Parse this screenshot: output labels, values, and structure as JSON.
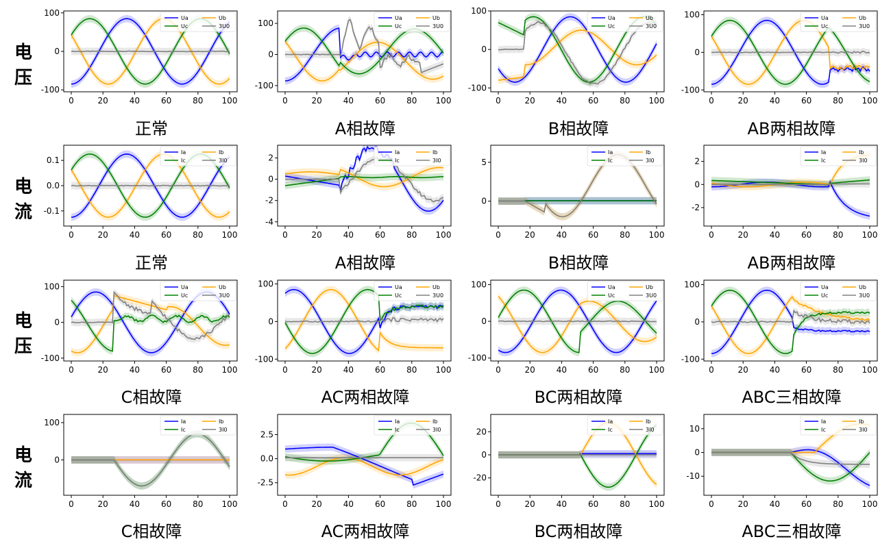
{
  "row_labels": [
    "电压",
    "电流",
    "电压",
    "电流"
  ],
  "titles": [
    [
      "正常",
      "A相故障",
      "B相故障",
      "AB两相故障"
    ],
    [
      "正常",
      "A相故障",
      "B相故障",
      "AB两相故障"
    ],
    [
      "C相故障",
      "AC两相故障",
      "BC两相故障",
      "ABC三相故障"
    ],
    [
      "C相故障",
      "AC两相故障",
      "BC两相故障",
      "ABC三相故障"
    ]
  ],
  "colors": {
    "a": "#0000ff",
    "b": "#ffa500",
    "c": "#008000",
    "zero": "#808080"
  },
  "chart_data": [
    {
      "type": "line",
      "kind": "voltage",
      "title": "正常",
      "ylim": [
        -105,
        105
      ],
      "yticks": [
        -100,
        0,
        100
      ],
      "x_range": [
        0,
        100
      ],
      "xticks": [
        0,
        20,
        40,
        60,
        80,
        100
      ],
      "legend": [
        "Ua",
        "Ub",
        "Uc",
        "3U0"
      ],
      "legend_loc": "upper right",
      "fault": "none",
      "fault_x": null,
      "series_params": {
        "amp": 85,
        "phase_a": -90,
        "phase_b": 30,
        "phase_c": 150,
        "period": 70
      }
    },
    {
      "type": "line",
      "kind": "voltage",
      "title": "A相故障",
      "ylim": [
        -120,
        140
      ],
      "yticks": [
        -100,
        0,
        100
      ],
      "x_range": [
        0,
        100
      ],
      "xticks": [
        0,
        20,
        40,
        60,
        80,
        100
      ],
      "legend": [
        "Ua",
        "Ub",
        "Uc",
        "3U0"
      ],
      "legend_loc": "upper right",
      "fault": "A",
      "fault_x": 35
    },
    {
      "type": "line",
      "kind": "voltage",
      "title": "B相故障",
      "ylim": [
        -110,
        100
      ],
      "yticks": [
        -100,
        0,
        100
      ],
      "x_range": [
        0,
        100
      ],
      "xticks": [
        0,
        20,
        40,
        60,
        80,
        100
      ],
      "legend": [
        "Ua",
        "Ub",
        "Uc",
        "3U0"
      ],
      "legend_loc": "upper right",
      "fault": "B",
      "fault_x": 17
    },
    {
      "type": "line",
      "kind": "voltage",
      "title": "AB两相故障",
      "ylim": [
        -105,
        110
      ],
      "yticks": [
        -100,
        0,
        100
      ],
      "x_range": [
        0,
        100
      ],
      "xticks": [
        0,
        20,
        40,
        60,
        80,
        100
      ],
      "legend": [
        "Ua",
        "Ub",
        "Uc",
        "3U0"
      ],
      "legend_loc": "upper right",
      "fault": "AB",
      "fault_x": 75
    },
    {
      "type": "line",
      "kind": "current",
      "title": "正常",
      "ylim": [
        -0.16,
        0.16
      ],
      "yticks": [
        -0.1,
        0.0,
        0.1
      ],
      "x_range": [
        0,
        100
      ],
      "xticks": [
        0,
        20,
        40,
        60,
        80,
        100
      ],
      "legend": [
        "Ia",
        "Ib",
        "Ic",
        "3I0"
      ],
      "legend_loc": "upper right",
      "fault": "none",
      "fault_x": null
    },
    {
      "type": "line",
      "kind": "current",
      "title": "A相故障",
      "ylim": [
        -4.4,
        3.2
      ],
      "yticks": [
        -4,
        -2,
        0,
        2
      ],
      "x_range": [
        0,
        100
      ],
      "xticks": [
        0,
        20,
        40,
        60,
        80,
        100
      ],
      "legend": [
        "Ia",
        "Ib",
        "Ic",
        "3I0"
      ],
      "legend_loc": "upper right",
      "fault": "A",
      "fault_x": 35
    },
    {
      "type": "line",
      "kind": "current",
      "title": "B相故障",
      "ylim": [
        -3.2,
        7.2
      ],
      "yticks": [
        0,
        5
      ],
      "x_range": [
        0,
        100
      ],
      "xticks": [
        0,
        20,
        40,
        60,
        80,
        100
      ],
      "legend": [
        "Ia",
        "Ib",
        "Ic",
        "3I0"
      ],
      "legend_loc": "upper right",
      "fault": "B",
      "fault_x": 17
    },
    {
      "type": "line",
      "kind": "current",
      "title": "AB两相故障",
      "ylim": [
        -3.6,
        3.4
      ],
      "yticks": [
        -2,
        0,
        2
      ],
      "x_range": [
        0,
        100
      ],
      "xticks": [
        0,
        20,
        40,
        60,
        80,
        100
      ],
      "legend": [
        "Ia",
        "Ib",
        "Ic",
        "3I0"
      ],
      "legend_loc": "upper right",
      "fault": "AB",
      "fault_x": 75
    },
    {
      "type": "line",
      "kind": "voltage",
      "title": "C相故障",
      "ylim": [
        -108,
        118
      ],
      "yticks": [
        -100,
        0,
        100
      ],
      "x_range": [
        0,
        100
      ],
      "xticks": [
        0,
        20,
        40,
        60,
        80,
        100
      ],
      "legend": [
        "Ua",
        "Ub",
        "Uc",
        "3U0"
      ],
      "legend_loc": "upper right",
      "fault": "C",
      "fault_x": 27
    },
    {
      "type": "line",
      "kind": "voltage",
      "title": "AC两相故障",
      "ylim": [
        -105,
        110
      ],
      "yticks": [
        -100,
        0,
        100
      ],
      "x_range": [
        0,
        100
      ],
      "xticks": [
        0,
        20,
        40,
        60,
        80,
        100
      ],
      "legend": [
        "Ua",
        "Ub",
        "Uc",
        "3U0"
      ],
      "legend_loc": "upper right",
      "fault": "AC",
      "fault_x": 60
    },
    {
      "type": "line",
      "kind": "voltage",
      "title": "BC两相故障",
      "ylim": [
        -108,
        112
      ],
      "yticks": [
        -100,
        0,
        100
      ],
      "x_range": [
        0,
        100
      ],
      "xticks": [
        0,
        20,
        40,
        60,
        80,
        100
      ],
      "legend": [
        "Ua",
        "Ub",
        "Uc",
        "3U0"
      ],
      "legend_loc": "upper right",
      "fault": "BC",
      "fault_x": 52
    },
    {
      "type": "line",
      "kind": "voltage",
      "title": "ABC三相故障",
      "ylim": [
        -105,
        112
      ],
      "yticks": [
        -100,
        0,
        100
      ],
      "x_range": [
        0,
        100
      ],
      "xticks": [
        0,
        20,
        40,
        60,
        80,
        100
      ],
      "legend": [
        "Ua",
        "Ub",
        "Uc",
        "3U0"
      ],
      "legend_loc": "upper right",
      "fault": "ABC",
      "fault_x": 52
    },
    {
      "type": "line",
      "kind": "current",
      "title": "C相故障",
      "ylim": [
        -95,
        122
      ],
      "yticks": [
        0,
        100
      ],
      "x_range": [
        0,
        100
      ],
      "xticks": [
        0,
        20,
        40,
        60,
        80,
        100
      ],
      "legend": [
        "Ia",
        "Ib",
        "Ic",
        "3I0"
      ],
      "legend_loc": "upper right",
      "fault": "C",
      "fault_x": 27
    },
    {
      "type": "line",
      "kind": "current",
      "title": "AC两相故障",
      "ylim": [
        -3.8,
        4.6
      ],
      "yticks": [
        -2.5,
        0.0,
        2.5
      ],
      "x_range": [
        0,
        100
      ],
      "xticks": [
        0,
        20,
        40,
        60,
        80,
        100
      ],
      "legend": [
        "Ia",
        "Ib",
        "Ic",
        "3I0"
      ],
      "legend_loc": "upper right",
      "fault": "AC",
      "fault_x": 60
    },
    {
      "type": "line",
      "kind": "current",
      "title": "BC两相故障",
      "ylim": [
        -35,
        35
      ],
      "yticks": [
        -20,
        0,
        20
      ],
      "x_range": [
        0,
        100
      ],
      "xticks": [
        0,
        20,
        40,
        60,
        80,
        100
      ],
      "legend": [
        "Ia",
        "Ib",
        "Ic",
        "3I0"
      ],
      "legend_loc": "upper right",
      "fault": "BC",
      "fault_x": 52
    },
    {
      "type": "line",
      "kind": "current",
      "title": "ABC三相故障",
      "ylim": [
        -18,
        16
      ],
      "yticks": [
        -10,
        0,
        10
      ],
      "x_range": [
        0,
        100
      ],
      "xticks": [
        0,
        20,
        40,
        60,
        80,
        100
      ],
      "legend": [
        "Ia",
        "Ib",
        "Ic",
        "3I0"
      ],
      "legend_loc": "upper right",
      "fault": "ABC",
      "fault_x": 50
    }
  ]
}
